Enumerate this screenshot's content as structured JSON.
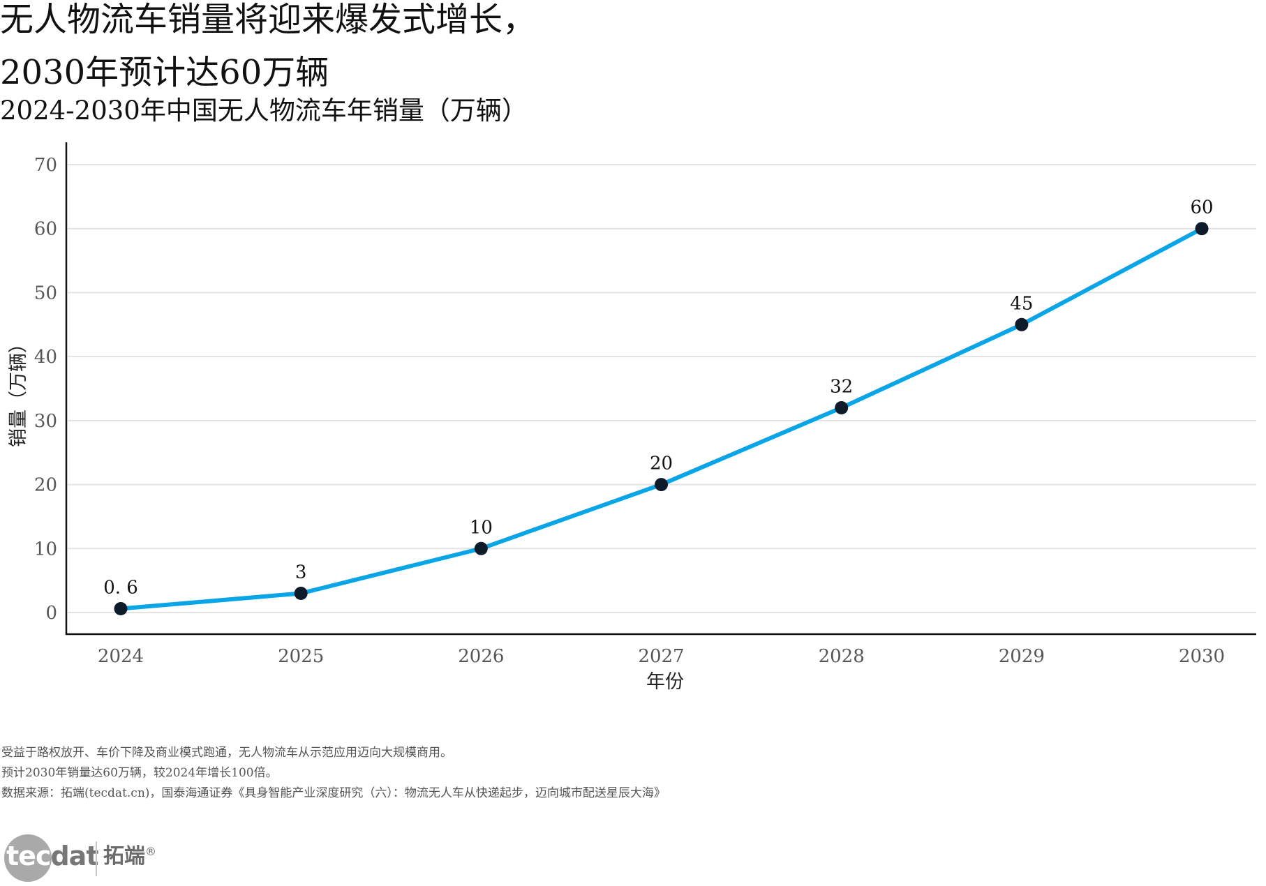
{
  "header": {
    "title_line1": "无人物流车销量将迎来爆发式增长，",
    "title_line2": "2030年预计达60万辆",
    "subtitle": "2024-2030年中国无人物流车年销量（万辆）"
  },
  "chart_data": {
    "type": "line",
    "title": "2024-2030年中国无人物流车年销量（万辆）",
    "categories": [
      "2024",
      "2025",
      "2026",
      "2027",
      "2028",
      "2029",
      "2030"
    ],
    "values": [
      0.6,
      3,
      10,
      20,
      32,
      45,
      60
    ],
    "data_labels": [
      "0. 6",
      "3",
      "10",
      "20",
      "32",
      "45",
      "60"
    ],
    "xlabel": "年份",
    "ylabel": "销量（万辆）",
    "ylim": [
      0,
      70
    ],
    "yticks": [
      0,
      10,
      20,
      30,
      40,
      50,
      60,
      70
    ],
    "grid": "horizontal",
    "legend": "none",
    "colors": {
      "line": "#0aa5e6",
      "marker": "#0d1b2a",
      "grid": "#e3e3e3",
      "axis": "#111111"
    }
  },
  "footer": {
    "note1": "受益于路权放开、车价下降及商业模式跑通，无人物流车从示范应用迈向大规模商用。",
    "note2": "预计2030年销量达60万辆，较2024年增长100倍。",
    "source": "数据来源：拓端(tecdat.cn)，国泰海通证券《具身智能产业深度研究（六）：物流无人车从快递起步，迈向城市配送星辰大海》"
  },
  "logo": {
    "part1": "tec",
    "part2": "dat",
    "cn": "拓端",
    "reg": "®"
  }
}
